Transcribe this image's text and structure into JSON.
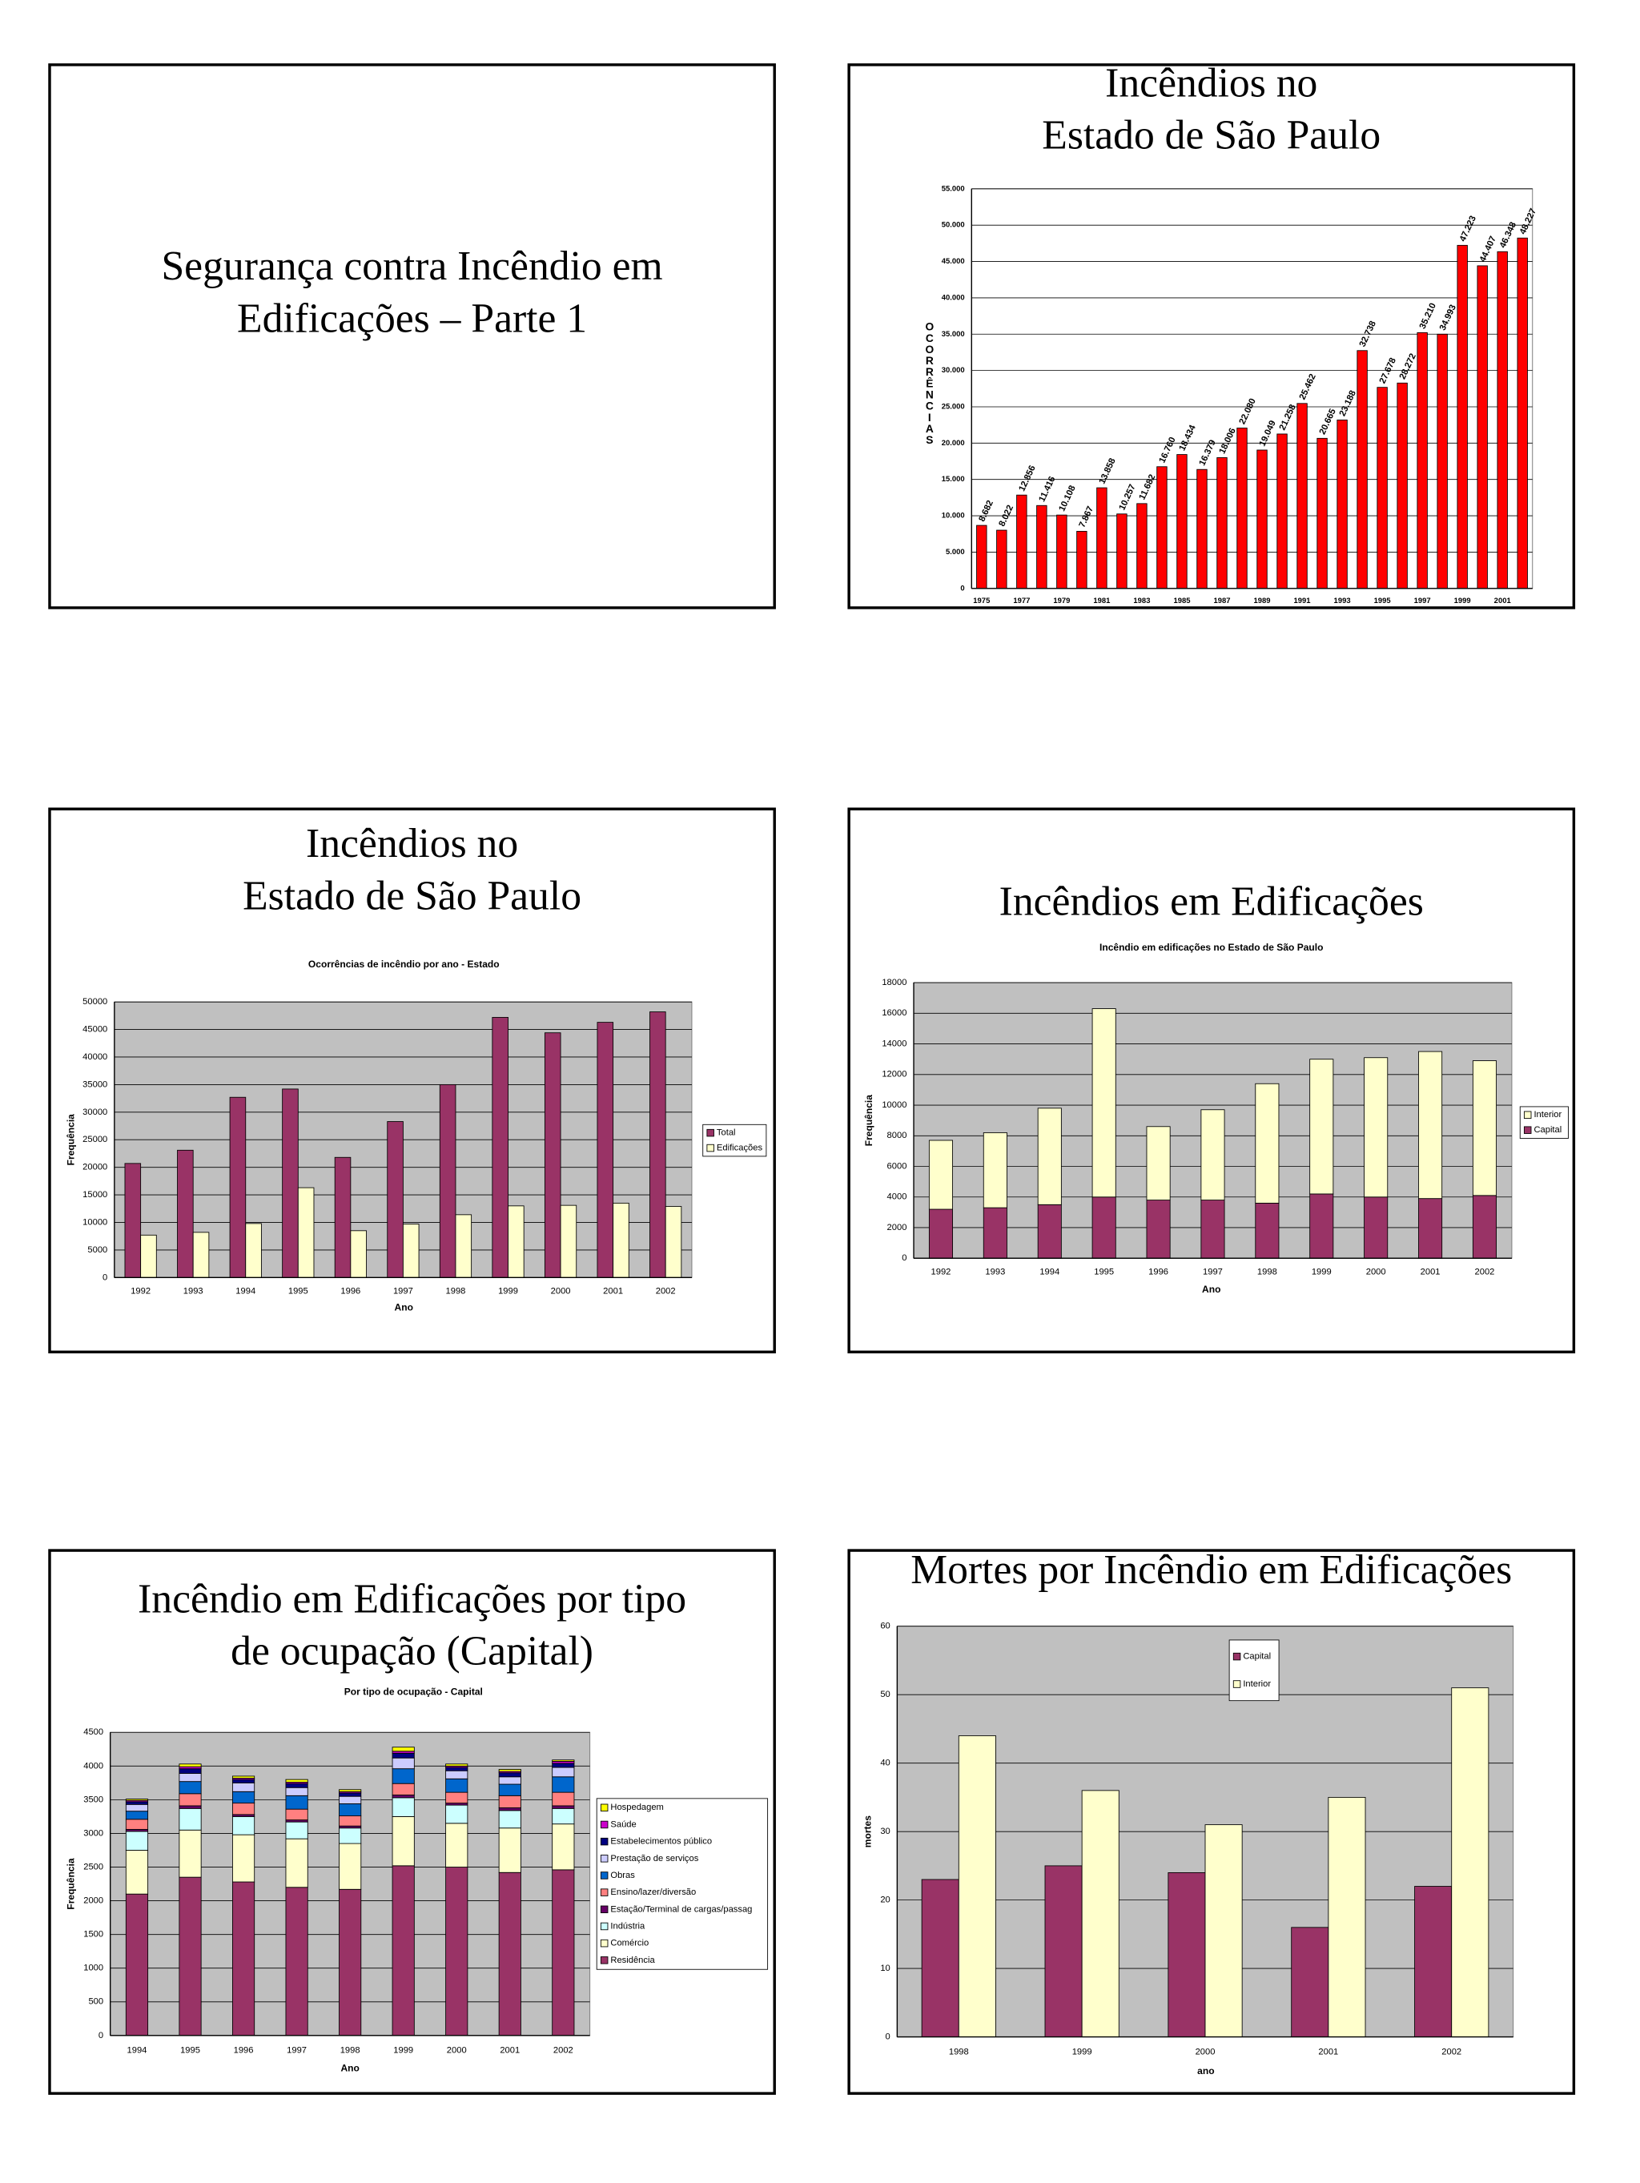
{
  "slides": [
    {
      "title": [
        "Segurança contra Incêndio em",
        "Edificações – Parte 1"
      ]
    },
    {
      "title": [
        "Incêndios no",
        "Estado de São Paulo"
      ]
    },
    {
      "title": [
        "Incêndios no",
        "Estado de São Paulo"
      ]
    },
    {
      "title": [
        "Incêndios em Edificações"
      ]
    },
    {
      "title": [
        "Incêndio em Edificações por tipo",
        "de ocupação (Capital)"
      ]
    },
    {
      "title": [
        "Mortes por Incêndio em Edificações"
      ]
    }
  ],
  "chart_data": [
    {
      "type": "bar",
      "y_label": "OCORRÊNCIAS",
      "categories": [
        "1975",
        null,
        "1977",
        null,
        "1979",
        null,
        "1981",
        null,
        "1983",
        null,
        "1985",
        null,
        "1987",
        null,
        "1989",
        null,
        "1991",
        null,
        "1993",
        null,
        "1995",
        null,
        "1997",
        null,
        "1999",
        null,
        "2001",
        null
      ],
      "values": [
        8682,
        8022,
        12856,
        11416,
        10108,
        7867,
        13858,
        10257,
        11682,
        16760,
        18434,
        16379,
        18006,
        22080,
        19049,
        21258,
        25462,
        20665,
        23188,
        32738,
        27678,
        28272,
        35210,
        34993,
        47223,
        44407,
        46348,
        48227
      ],
      "value_labels": [
        "8.682",
        "8.022",
        "12.856",
        "11.416",
        "10.108",
        "7.867",
        "13.858",
        "10.257",
        "11.682",
        "16.760",
        "18.434",
        "16.379",
        "18.006",
        "22.080",
        "19.049",
        "21.258",
        "25.462",
        "20.665",
        "23.188",
        "32.738",
        "27.678",
        "28.272",
        "35.210",
        "34.993",
        "47.223",
        "44.407",
        "46.348",
        "48.227"
      ],
      "color": "#ff0000",
      "ylim": [
        0,
        55000
      ],
      "yticks": [
        0,
        {
          "value": 5000,
          "label": "5.000"
        },
        {
          "value": 10000,
          "label": "10.000"
        },
        {
          "value": 15000,
          "label": "15.000"
        },
        {
          "value": 20000,
          "label": "20.000"
        },
        {
          "value": 25000,
          "label": "25.000"
        },
        {
          "value": 30000,
          "label": "30.000"
        },
        {
          "value": 35000,
          "label": "35.000"
        },
        {
          "value": 40000,
          "label": "40.000"
        },
        {
          "value": 45000,
          "label": "45.000"
        },
        {
          "value": 50000,
          "label": "50.000"
        },
        {
          "value": 55000,
          "label": "55.000"
        }
      ],
      "grid": true
    },
    {
      "type": "bar",
      "title": "Ocorrências de incêndio por ano - Estado",
      "x_label": "Ano",
      "y_label": "Frequência",
      "categories": [
        "1992",
        "1993",
        "1994",
        "1995",
        "1996",
        "1997",
        "1998",
        "1999",
        "2000",
        "2001",
        "2002"
      ],
      "series": [
        {
          "name": "Total",
          "color": "#993366",
          "values": [
            20700,
            23100,
            32700,
            34200,
            21800,
            28300,
            35000,
            47200,
            44400,
            46300,
            48200
          ]
        },
        {
          "name": "Edificações",
          "color": "#ffffcc",
          "values": [
            7700,
            8200,
            9800,
            16300,
            8500,
            9700,
            11400,
            13000,
            13100,
            13500,
            12900
          ]
        }
      ],
      "ylim": [
        0,
        50000
      ],
      "yticks": [
        0,
        5000,
        10000,
        15000,
        20000,
        25000,
        30000,
        35000,
        40000,
        45000,
        50000
      ],
      "grid": true,
      "legend": "right"
    },
    {
      "type": "bar",
      "stacked": true,
      "title": "Incêndio em edificações no Estado de São Paulo",
      "x_label": "Ano",
      "y_label": "Frequência",
      "categories": [
        "1992",
        "1993",
        "1994",
        "1995",
        "1996",
        "1997",
        "1998",
        "1999",
        "2000",
        "2001",
        "2002"
      ],
      "series": [
        {
          "name": "Capital",
          "color": "#993366",
          "values": [
            3200,
            3300,
            3500,
            4000,
            3800,
            3800,
            3600,
            4200,
            4000,
            3900,
            4100
          ]
        },
        {
          "name": "Interior",
          "color": "#ffffcc",
          "values": [
            4500,
            4900,
            6300,
            12300,
            4800,
            5900,
            7800,
            8800,
            9100,
            9600,
            8800
          ]
        }
      ],
      "ylim": [
        0,
        18000
      ],
      "yticks": [
        0,
        2000,
        4000,
        6000,
        8000,
        10000,
        12000,
        14000,
        16000,
        18000
      ],
      "grid": true,
      "legend": "right"
    },
    {
      "type": "bar",
      "stacked": true,
      "title": "Por tipo de ocupação - Capital",
      "x_label": "Ano",
      "y_label": "Frequência",
      "categories": [
        "1994",
        "1995",
        "1996",
        "1997",
        "1998",
        "1999",
        "2000",
        "2001",
        "2002"
      ],
      "series": [
        {
          "name": "Residência",
          "color": "#993366",
          "values": [
            2100,
            2350,
            2280,
            2200,
            2170,
            2520,
            2500,
            2420,
            2460
          ]
        },
        {
          "name": "Comércio",
          "color": "#ffffcc",
          "values": [
            650,
            700,
            700,
            720,
            680,
            730,
            650,
            660,
            680
          ]
        },
        {
          "name": "Indústria",
          "color": "#ccffff",
          "values": [
            280,
            320,
            270,
            250,
            230,
            280,
            270,
            260,
            230
          ]
        },
        {
          "name": "Estação/Terminal de cargas/passag",
          "color": "#660066",
          "values": [
            30,
            40,
            30,
            30,
            30,
            40,
            30,
            40,
            40
          ]
        },
        {
          "name": "Ensino/lazer/diversão",
          "color": "#ff8080",
          "values": [
            150,
            180,
            170,
            160,
            150,
            170,
            160,
            180,
            200
          ]
        },
        {
          "name": "Obras",
          "color": "#0066cc",
          "values": [
            120,
            180,
            170,
            200,
            180,
            220,
            200,
            170,
            230
          ]
        },
        {
          "name": "Prestação de serviços",
          "color": "#ccccff",
          "values": [
            100,
            120,
            130,
            120,
            110,
            160,
            120,
            110,
            140
          ]
        },
        {
          "name": "Estabelecimentos público",
          "color": "#000080",
          "values": [
            40,
            70,
            50,
            60,
            50,
            70,
            50,
            60,
            60
          ]
        },
        {
          "name": "Saúde",
          "color": "#cc00cc",
          "values": [
            20,
            30,
            20,
            20,
            20,
            30,
            20,
            20,
            30
          ]
        },
        {
          "name": "Hospedagem",
          "color": "#ffff00",
          "values": [
            20,
            40,
            30,
            40,
            30,
            60,
            30,
            30,
            20
          ]
        }
      ],
      "ylim": [
        0,
        4500
      ],
      "yticks": [
        0,
        500,
        1000,
        1500,
        2000,
        2500,
        3000,
        3500,
        4000,
        4500
      ],
      "grid": true,
      "legend": "right"
    },
    {
      "type": "bar",
      "x_label": "ano",
      "y_label": "mortes",
      "categories": [
        "1998",
        "1999",
        "2000",
        "2001",
        "2002"
      ],
      "series": [
        {
          "name": "Capital",
          "color": "#993366",
          "values": [
            23,
            25,
            24,
            16,
            22
          ]
        },
        {
          "name": "Interior",
          "color": "#ffffcc",
          "values": [
            44,
            36,
            31,
            35,
            51
          ]
        }
      ],
      "ylim": [
        0,
        60
      ],
      "yticks": [
        0,
        10,
        20,
        30,
        40,
        50,
        60
      ],
      "grid": true,
      "legend": "upper center"
    }
  ]
}
